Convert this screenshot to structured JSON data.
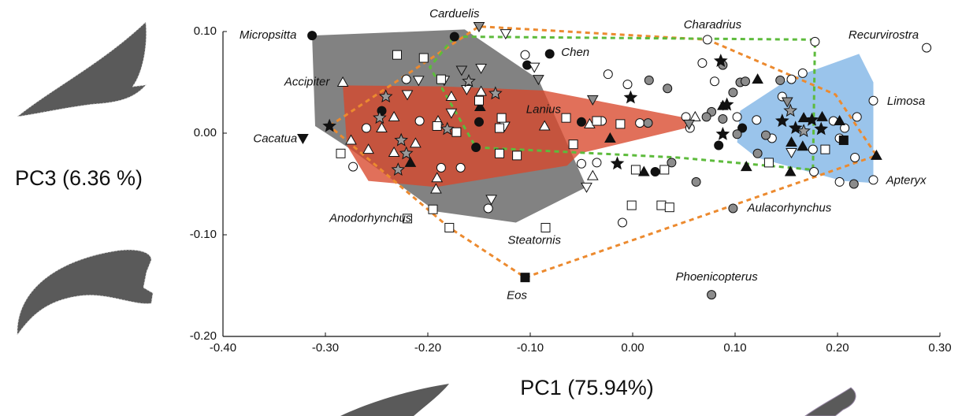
{
  "chart_data": {
    "type": "scatter",
    "x_label": "PC1 (75.94%)",
    "y_label": "PC3 (6.36 %)",
    "xlim": [
      -0.4,
      0.3
    ],
    "ylim": [
      -0.2,
      0.1
    ],
    "xticks": [
      {
        "value": -0.4,
        "label": "-0.40"
      },
      {
        "value": -0.3,
        "label": "-0.30"
      },
      {
        "value": -0.2,
        "label": "-0.20"
      },
      {
        "value": -0.1,
        "label": "-0.10"
      },
      {
        "value": 0,
        "label": "0.00"
      },
      {
        "value": 0.1,
        "label": "0.10"
      },
      {
        "value": 0.2,
        "label": "0.20"
      },
      {
        "value": 0.3,
        "label": "0.30"
      }
    ],
    "yticks": [
      {
        "value": -0.2,
        "label": "-0.20"
      },
      {
        "value": -0.1,
        "label": "-0.10"
      },
      {
        "value": 0,
        "label": "0.00"
      },
      {
        "value": 0.1,
        "label": "0.10"
      }
    ],
    "regions": [
      {
        "fill": "#5f5f5f",
        "x": [
          -0.313,
          -0.164,
          -0.092,
          -0.045,
          -0.114,
          -0.192,
          -0.275,
          -0.31
        ],
        "y": [
          0.096,
          0.102,
          0.053,
          -0.053,
          -0.088,
          -0.077,
          -0.016,
          0.007
        ]
      },
      {
        "fill": "#d9482b",
        "x": [
          -0.283,
          -0.187,
          -0.087,
          0.052,
          0.052,
          -0.052,
          -0.064,
          -0.192,
          -0.258,
          -0.279
        ],
        "y": [
          0.047,
          0.046,
          0.042,
          0.015,
          0.005,
          -0.02,
          -0.032,
          -0.053,
          -0.047,
          -0.012
        ]
      },
      {
        "fill": "#7db4e6",
        "x": [
          0.105,
          0.152,
          0.221,
          0.235,
          0.235,
          0.205,
          0.121,
          0.102
        ],
        "y": [
          0.022,
          0.053,
          0.078,
          0.05,
          -0.049,
          -0.047,
          -0.024,
          -0.009
        ]
      },
      {
        "stroke": "#ec8a2f",
        "x": [
          -0.296,
          -0.15,
          0.073,
          0.198,
          0.238,
          -0.105,
          -0.179
        ],
        "y": [
          0.007,
          0.105,
          0.092,
          0.038,
          -0.022,
          -0.142,
          -0.093
        ]
      },
      {
        "stroke": "#5dbb3c",
        "x": [
          -0.174,
          0.178,
          0.176,
          0.044,
          -0.153,
          -0.198
        ],
        "y": [
          0.095,
          0.092,
          -0.036,
          -0.024,
          -0.014,
          0.065
        ]
      }
    ],
    "series": [
      {
        "marker": "circle",
        "color": "#111111",
        "x": [
          -0.313,
          -0.174,
          -0.103,
          -0.081,
          -0.245,
          -0.15,
          -0.153,
          -0.05,
          0.084,
          0.022,
          0.107
        ],
        "y": [
          0.096,
          0.095,
          0.067,
          0.078,
          0.022,
          0.011,
          -0.014,
          0.011,
          -0.012,
          -0.038,
          0.005
        ]
      },
      {
        "marker": "circle",
        "color": "#ffffff",
        "x": [
          0.073,
          0.178,
          0.287,
          0.235,
          0.166,
          0.155,
          0.219,
          0.207,
          0.202,
          0.217,
          0.202,
          0.235,
          0.177,
          0.176,
          0.136,
          0.121,
          0.068,
          0.08,
          0.052,
          0.056,
          -0.024,
          -0.005,
          -0.03,
          -0.05,
          -0.035,
          0.007,
          -0.01,
          -0.141,
          -0.187,
          -0.168,
          -0.208,
          -0.221,
          -0.26,
          -0.273,
          -0.105,
          0.146,
          0.196,
          0.102
        ],
        "y": [
          0.092,
          0.09,
          0.084,
          0.032,
          0.059,
          0.053,
          0.016,
          0.005,
          -0.005,
          -0.024,
          -0.048,
          -0.046,
          -0.038,
          -0.016,
          -0.005,
          0.013,
          0.069,
          0.051,
          0.016,
          0.005,
          0.058,
          0.048,
          0.012,
          -0.03,
          -0.029,
          0.01,
          -0.088,
          -0.074,
          -0.034,
          -0.034,
          0.012,
          0.053,
          0.005,
          -0.033,
          0.077,
          0.036,
          0.012,
          0.016
        ]
      },
      {
        "marker": "circle",
        "color": "#8c8c8c",
        "x": [
          0.088,
          0.105,
          0.098,
          0.077,
          0.088,
          0.102,
          0.13,
          0.144,
          0.11,
          0.072,
          0.034,
          0.016,
          0.015,
          0.038,
          0.062,
          0.122,
          0.216,
          0.098,
          0.077
        ],
        "y": [
          0.067,
          0.05,
          0.04,
          0.021,
          0.014,
          -0.001,
          -0.002,
          0.052,
          0.051,
          0.016,
          0.044,
          0.052,
          0.01,
          -0.029,
          -0.048,
          -0.02,
          -0.05,
          -0.074,
          -0.159
        ]
      },
      {
        "marker": "triangle",
        "color": "#111111",
        "x": [
          0.122,
          0.088,
          0.202,
          0.111,
          0.154,
          0.185,
          0.166,
          0.155,
          0.238,
          0.011,
          -0.022,
          -0.149,
          -0.217,
          0.167
        ],
        "y": [
          0.053,
          0.027,
          0.012,
          -0.033,
          -0.038,
          0.016,
          -0.013,
          -0.009,
          -0.022,
          -0.038,
          -0.005,
          0.026,
          -0.029,
          0.015
        ]
      },
      {
        "marker": "triangle",
        "color": "#ffffff",
        "x": [
          -0.283,
          -0.275,
          -0.258,
          -0.245,
          -0.233,
          -0.212,
          -0.19,
          -0.192,
          -0.177,
          -0.148,
          -0.086,
          -0.039,
          0.061,
          -0.042,
          -0.191,
          -0.233
        ],
        "y": [
          0.05,
          -0.007,
          -0.016,
          0.005,
          0.016,
          -0.01,
          0.012,
          -0.055,
          0.036,
          0.041,
          0.007,
          -0.042,
          0.016,
          0.009,
          -0.044,
          -0.019
        ]
      },
      {
        "marker": "triangle-down",
        "color": "#8c8c8c",
        "x": [
          -0.15,
          -0.092,
          -0.167,
          -0.039,
          0.151,
          0.055
        ],
        "y": [
          0.105,
          0.053,
          0.062,
          0.033,
          0.031,
          0.009
        ]
      },
      {
        "marker": "triangle-down",
        "color": "#ffffff",
        "x": [
          -0.124,
          -0.209,
          -0.184,
          -0.148,
          -0.096,
          -0.22,
          -0.162,
          -0.177,
          -0.125,
          -0.138,
          -0.045,
          0.155
        ],
        "y": [
          0.098,
          0.052,
          0.052,
          0.064,
          0.065,
          0.038,
          0.043,
          0.02,
          0.007,
          -0.065,
          -0.053,
          -0.019
        ]
      },
      {
        "marker": "triangle-down",
        "color": "#111111",
        "x": [
          -0.322
        ],
        "y": [
          -0.005
        ]
      },
      {
        "marker": "square",
        "color": "#ffffff",
        "x": [
          -0.23,
          -0.204,
          -0.187,
          -0.15,
          -0.128,
          -0.191,
          -0.172,
          -0.13,
          -0.13,
          -0.113,
          -0.058,
          -0.065,
          -0.035,
          -0.012,
          -0.001,
          0.028,
          0.036,
          0.003,
          0.031,
          -0.085,
          -0.179,
          -0.195,
          -0.22,
          -0.285,
          0.133,
          0.188
        ],
        "y": [
          0.077,
          0.074,
          0.053,
          0.032,
          0.015,
          0.007,
          0.001,
          0.005,
          -0.02,
          -0.022,
          -0.011,
          0.015,
          0.012,
          0.009,
          -0.071,
          -0.071,
          -0.073,
          -0.036,
          -0.036,
          -0.093,
          -0.093,
          -0.075,
          -0.084,
          -0.02,
          -0.029,
          -0.016
        ]
      },
      {
        "marker": "square",
        "color": "#111111",
        "x": [
          -0.105,
          0.206
        ],
        "y": [
          -0.142,
          -0.007
        ]
      },
      {
        "marker": "star",
        "color": "#111111",
        "x": [
          -0.296,
          0.086,
          -0.002,
          0.092,
          0.146,
          0.159,
          0.184,
          -0.015,
          0.088,
          0.175
        ],
        "y": [
          0.007,
          0.071,
          0.035,
          0.028,
          0.012,
          0.005,
          0.004,
          -0.03,
          -0.001,
          0.013
        ]
      },
      {
        "marker": "star",
        "color": "#9a9a9a",
        "x": [
          -0.241,
          -0.247,
          -0.226,
          -0.221,
          -0.229,
          -0.181,
          -0.16,
          -0.134,
          0.154,
          0.167
        ],
        "y": [
          0.036,
          0.015,
          -0.007,
          -0.02,
          -0.036,
          0.004,
          0.051,
          0.039,
          0.022,
          0.002
        ]
      }
    ],
    "annotations": [
      {
        "text": "Micropsitta",
        "x": -0.356,
        "y": 0.096
      },
      {
        "text": "Carduelis",
        "x": -0.174,
        "y": 0.117
      },
      {
        "text": "Chen",
        "x": -0.056,
        "y": 0.079
      },
      {
        "text": "Charadrius",
        "x": 0.078,
        "y": 0.106
      },
      {
        "text": "Recurvirostra",
        "x": 0.245,
        "y": 0.096
      },
      {
        "text": "Accipiter",
        "x": -0.318,
        "y": 0.05
      },
      {
        "text": "Limosa",
        "x": 0.267,
        "y": 0.031
      },
      {
        "text": "Lanius",
        "x": -0.087,
        "y": 0.023
      },
      {
        "text": "Cacatua",
        "x": -0.349,
        "y": -0.006
      },
      {
        "text": "Apteryx",
        "x": 0.267,
        "y": -0.047
      },
      {
        "text": "Aulacorhynchus",
        "x": 0.153,
        "y": -0.074
      },
      {
        "text": "Anodorhynchus",
        "x": -0.256,
        "y": -0.084
      },
      {
        "text": "Steatornis",
        "x": -0.096,
        "y": -0.106
      },
      {
        "text": "Eos",
        "x": -0.113,
        "y": -0.16
      },
      {
        "text": "Phoenicopterus",
        "x": 0.082,
        "y": -0.142
      }
    ]
  }
}
